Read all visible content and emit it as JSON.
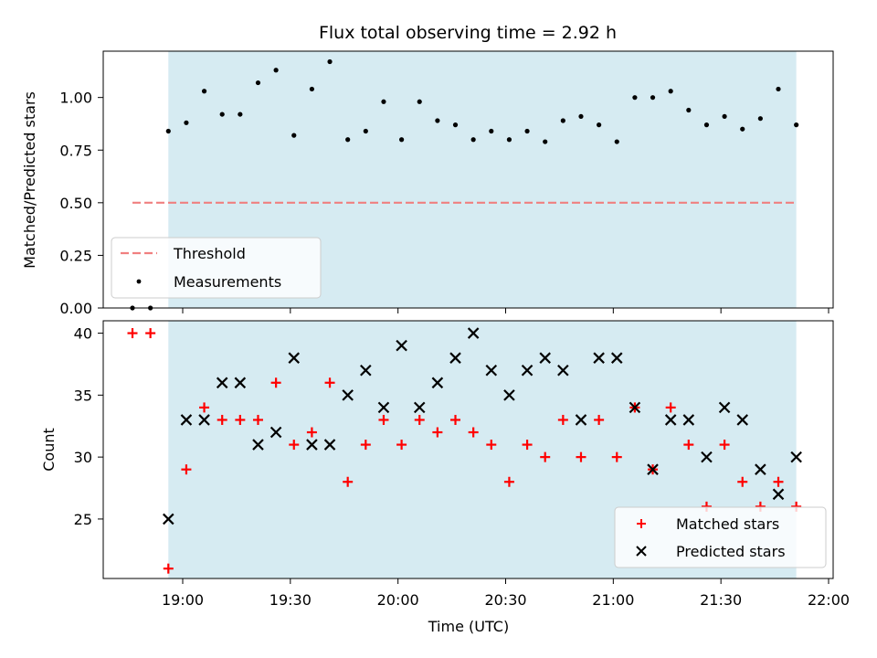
{
  "chart_data": {
    "type": "scatter",
    "title": "Flux total observing time = 2.92 h",
    "xlabel": "Time (UTC)",
    "x_ticks": [
      "19:00",
      "19:30",
      "20:00",
      "20:30",
      "21:00",
      "21:30",
      "22:00"
    ],
    "observing_window": [
      "18:56",
      "21:51"
    ],
    "panels": [
      {
        "name": "ratio",
        "ylabel": "Matched/Predicted stars",
        "ylim": [
          0,
          1.22
        ],
        "y_ticks": [
          "0.00",
          "0.25",
          "0.50",
          "0.75",
          "1.00"
        ],
        "threshold": {
          "label": "Threshold",
          "value": 0.5,
          "x_range": [
            "18:46",
            "21:51"
          ],
          "color": "#f08080"
        },
        "series": [
          {
            "name": "Measurements",
            "marker": "dot",
            "color": "#000000",
            "x": [
              "18:46",
              "18:51",
              "18:56",
              "19:01",
              "19:06",
              "19:11",
              "19:16",
              "19:21",
              "19:26",
              "19:31",
              "19:36",
              "19:41",
              "19:46",
              "19:51",
              "19:56",
              "20:01",
              "20:06",
              "20:11",
              "20:16",
              "20:21",
              "20:26",
              "20:31",
              "20:36",
              "20:41",
              "20:46",
              "20:51",
              "20:56",
              "21:01",
              "21:06",
              "21:11",
              "21:16",
              "21:21",
              "21:26",
              "21:31",
              "21:36",
              "21:41",
              "21:46",
              "21:51"
            ],
            "y": [
              0.0,
              0.0,
              0.84,
              0.88,
              1.03,
              0.92,
              0.92,
              1.07,
              1.13,
              0.82,
              1.04,
              1.17,
              0.8,
              0.84,
              0.98,
              0.8,
              0.98,
              0.89,
              0.87,
              0.8,
              0.84,
              0.8,
              0.84,
              0.79,
              0.89,
              0.91,
              0.87,
              0.79,
              1.0,
              1.0,
              1.03,
              0.94,
              0.87,
              0.91,
              0.85,
              0.9,
              1.04,
              0.87
            ]
          }
        ],
        "legend": {
          "placement": "lower-left",
          "entries": [
            "Threshold",
            "Measurements"
          ]
        }
      },
      {
        "name": "count",
        "ylabel": "Count",
        "ylim": [
          20.2,
          41.0
        ],
        "y_ticks": [
          "25",
          "30",
          "35",
          "40"
        ],
        "series": [
          {
            "name": "Matched stars",
            "marker": "plus",
            "color": "#ff0000",
            "x": [
              "18:46",
              "18:51",
              "18:56",
              "19:01",
              "19:06",
              "19:11",
              "19:16",
              "19:21",
              "19:26",
              "19:31",
              "19:36",
              "19:41",
              "19:46",
              "19:51",
              "19:56",
              "20:01",
              "20:06",
              "20:11",
              "20:16",
              "20:21",
              "20:26",
              "20:31",
              "20:36",
              "20:41",
              "20:46",
              "20:51",
              "20:56",
              "21:01",
              "21:06",
              "21:11",
              "21:16",
              "21:21",
              "21:26",
              "21:31",
              "21:36",
              "21:41",
              "21:46",
              "21:51"
            ],
            "y": [
              40,
              40,
              21,
              29,
              34,
              33,
              33,
              33,
              36,
              31,
              32,
              36,
              28,
              31,
              33,
              31,
              33,
              32,
              33,
              32,
              31,
              28,
              31,
              30,
              33,
              30,
              33,
              30,
              34,
              29,
              34,
              31,
              26,
              31,
              28,
              26,
              28,
              26
            ]
          },
          {
            "name": "Predicted stars",
            "marker": "x",
            "color": "#000000",
            "x": [
              "18:56",
              "19:01",
              "19:06",
              "19:11",
              "19:16",
              "19:21",
              "19:26",
              "19:31",
              "19:36",
              "19:41",
              "19:46",
              "19:51",
              "19:56",
              "20:01",
              "20:06",
              "20:11",
              "20:16",
              "20:21",
              "20:26",
              "20:31",
              "20:36",
              "20:41",
              "20:46",
              "20:51",
              "20:56",
              "21:01",
              "21:06",
              "21:11",
              "21:16",
              "21:21",
              "21:26",
              "21:31",
              "21:36",
              "21:41",
              "21:46",
              "21:51"
            ],
            "y": [
              25,
              33,
              33,
              36,
              36,
              31,
              32,
              38,
              31,
              31,
              35,
              37,
              34,
              39,
              34,
              36,
              38,
              40,
              37,
              35,
              37,
              38,
              37,
              33,
              38,
              38,
              34,
              29,
              33,
              33,
              30,
              34,
              33,
              29,
              27,
              30
            ]
          }
        ],
        "legend": {
          "placement": "lower-right",
          "entries": [
            "Matched stars",
            "Predicted stars"
          ]
        }
      }
    ],
    "colors": {
      "observing_window": "#add8e6",
      "threshold": "#f08080",
      "matched": "#ff0000",
      "predicted": "#000000"
    }
  }
}
